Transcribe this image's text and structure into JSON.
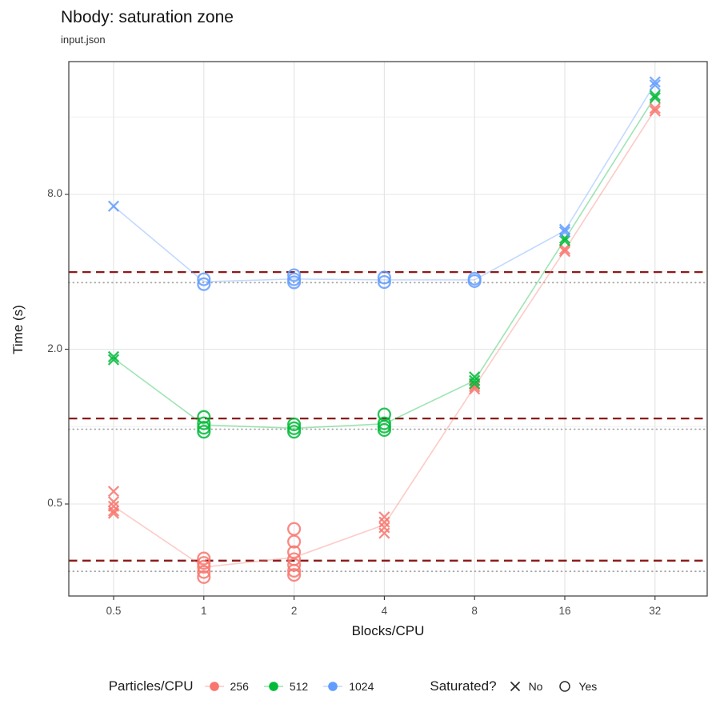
{
  "chart_data": {
    "type": "scatter",
    "title": "Nbody: saturation zone",
    "subtitle": "input.json",
    "x_axis": {
      "label": "Blocks/CPU",
      "scale": "log2",
      "ticks": [
        {
          "v": 0.5,
          "t": "0.5"
        },
        {
          "v": 1,
          "t": "1"
        },
        {
          "v": 2,
          "t": "2"
        },
        {
          "v": 4,
          "t": "4"
        },
        {
          "v": 8,
          "t": "8"
        },
        {
          "v": 16,
          "t": "16"
        },
        {
          "v": 32,
          "t": "32"
        }
      ]
    },
    "y_axis": {
      "label": "Time (s)",
      "scale": "log2",
      "ticks": [
        {
          "v": 0.5,
          "t": "0.5"
        },
        {
          "v": 2,
          "t": "2.0"
        },
        {
          "v": 8,
          "t": "8.0"
        }
      ],
      "minor_gridlines": [
        1,
        4,
        16
      ],
      "range": [
        0.22,
        26.7
      ]
    },
    "reference_lines": [
      {
        "value": 3.99,
        "style": "dashed",
        "color": "#8B1A1A"
      },
      {
        "value": 1.075,
        "style": "dashed",
        "color": "#8B1A1A"
      },
      {
        "value": 0.301,
        "style": "dashed",
        "color": "#8B1A1A"
      },
      {
        "value": 3.63,
        "style": "dotted",
        "color": "#A6A6A6"
      },
      {
        "value": 0.977,
        "style": "dotted",
        "color": "#A6A6A6"
      },
      {
        "value": 0.2735,
        "style": "dotted",
        "color": "#A6A6A6"
      }
    ],
    "series": [
      {
        "name": "256",
        "color": "#F8766D",
        "line": {
          "x": [
            0.5,
            1,
            2,
            4,
            8,
            16,
            32
          ],
          "y": [
            0.49,
            0.284,
            0.31,
            0.415,
            1.43,
            4.85,
            17.1
          ]
        },
        "points": [
          {
            "x": 0.5,
            "y": 0.56,
            "saturated": false
          },
          {
            "x": 0.5,
            "y": 0.51,
            "saturated": false
          },
          {
            "x": 0.5,
            "y": 0.49,
            "saturated": false
          },
          {
            "x": 0.5,
            "y": 0.47,
            "saturated": false
          },
          {
            "x": 0.5,
            "y": 0.46,
            "saturated": false
          },
          {
            "x": 1,
            "y": 0.307,
            "saturated": true
          },
          {
            "x": 1,
            "y": 0.295,
            "saturated": true
          },
          {
            "x": 1,
            "y": 0.285,
            "saturated": true
          },
          {
            "x": 1,
            "y": 0.272,
            "saturated": true
          },
          {
            "x": 1,
            "y": 0.26,
            "saturated": true
          },
          {
            "x": 2,
            "y": 0.4,
            "saturated": true
          },
          {
            "x": 2,
            "y": 0.357,
            "saturated": true
          },
          {
            "x": 2,
            "y": 0.325,
            "saturated": true
          },
          {
            "x": 2,
            "y": 0.305,
            "saturated": true
          },
          {
            "x": 2,
            "y": 0.29,
            "saturated": true
          },
          {
            "x": 2,
            "y": 0.275,
            "saturated": true
          },
          {
            "x": 2,
            "y": 0.265,
            "saturated": true
          },
          {
            "x": 4,
            "y": 0.445,
            "saturated": false
          },
          {
            "x": 4,
            "y": 0.425,
            "saturated": false
          },
          {
            "x": 4,
            "y": 0.405,
            "saturated": false
          },
          {
            "x": 4,
            "y": 0.385,
            "saturated": false
          },
          {
            "x": 8,
            "y": 1.46,
            "saturated": false
          },
          {
            "x": 8,
            "y": 1.43,
            "saturated": false
          },
          {
            "x": 8,
            "y": 1.4,
            "saturated": false
          },
          {
            "x": 16,
            "y": 4.9,
            "saturated": false
          },
          {
            "x": 16,
            "y": 4.8,
            "saturated": false
          },
          {
            "x": 32,
            "y": 17.3,
            "saturated": false
          },
          {
            "x": 32,
            "y": 16.9,
            "saturated": false
          }
        ]
      },
      {
        "name": "512",
        "color": "#00BA38",
        "line": {
          "x": [
            0.5,
            1,
            2,
            4,
            8,
            16,
            32
          ],
          "y": [
            1.845,
            1.015,
            0.985,
            1.025,
            1.51,
            5.34,
            19.2
          ]
        },
        "points": [
          {
            "x": 0.5,
            "y": 1.87,
            "saturated": false
          },
          {
            "x": 0.5,
            "y": 1.82,
            "saturated": false
          },
          {
            "x": 1,
            "y": 1.09,
            "saturated": true
          },
          {
            "x": 1,
            "y": 1.03,
            "saturated": true
          },
          {
            "x": 1,
            "y": 0.99,
            "saturated": true
          },
          {
            "x": 1,
            "y": 0.955,
            "saturated": true
          },
          {
            "x": 2,
            "y": 1.02,
            "saturated": true
          },
          {
            "x": 2,
            "y": 0.985,
            "saturated": true
          },
          {
            "x": 2,
            "y": 0.955,
            "saturated": true
          },
          {
            "x": 4,
            "y": 1.115,
            "saturated": true
          },
          {
            "x": 4,
            "y": 1.03,
            "saturated": true
          },
          {
            "x": 4,
            "y": 1.0,
            "saturated": true
          },
          {
            "x": 4,
            "y": 0.97,
            "saturated": true
          },
          {
            "x": 8,
            "y": 1.56,
            "saturated": false
          },
          {
            "x": 8,
            "y": 1.51,
            "saturated": false
          },
          {
            "x": 8,
            "y": 1.47,
            "saturated": false
          },
          {
            "x": 16,
            "y": 5.4,
            "saturated": false
          },
          {
            "x": 16,
            "y": 5.28,
            "saturated": false
          },
          {
            "x": 32,
            "y": 19.4,
            "saturated": false
          },
          {
            "x": 32,
            "y": 19.0,
            "saturated": false
          }
        ]
      },
      {
        "name": "1024",
        "color": "#619CFF",
        "line": {
          "x": [
            0.5,
            1,
            2,
            4,
            8,
            16,
            32
          ],
          "y": [
            7.2,
            3.66,
            3.75,
            3.72,
            3.72,
            5.78,
            21.6
          ]
        },
        "points": [
          {
            "x": 0.5,
            "y": 7.2,
            "saturated": false
          },
          {
            "x": 1,
            "y": 3.74,
            "saturated": true
          },
          {
            "x": 1,
            "y": 3.58,
            "saturated": true
          },
          {
            "x": 2,
            "y": 3.88,
            "saturated": true
          },
          {
            "x": 2,
            "y": 3.74,
            "saturated": true
          },
          {
            "x": 2,
            "y": 3.64,
            "saturated": true
          },
          {
            "x": 4,
            "y": 3.8,
            "saturated": true
          },
          {
            "x": 4,
            "y": 3.65,
            "saturated": true
          },
          {
            "x": 8,
            "y": 3.76,
            "saturated": true
          },
          {
            "x": 8,
            "y": 3.68,
            "saturated": true
          },
          {
            "x": 16,
            "y": 5.85,
            "saturated": false
          },
          {
            "x": 16,
            "y": 5.72,
            "saturated": false
          },
          {
            "x": 32,
            "y": 21.9,
            "saturated": false
          },
          {
            "x": 32,
            "y": 21.3,
            "saturated": false
          }
        ]
      }
    ],
    "legend": {
      "color_group": {
        "title": "Particles/CPU",
        "items": [
          {
            "label": "256",
            "color": "#F8766D"
          },
          {
            "label": "512",
            "color": "#00BA38"
          },
          {
            "label": "1024",
            "color": "#619CFF"
          }
        ]
      },
      "shape_group": {
        "title": "Saturated?",
        "items": [
          {
            "label": "No",
            "shape": "x"
          },
          {
            "label": "Yes",
            "shape": "circle"
          }
        ]
      }
    }
  }
}
